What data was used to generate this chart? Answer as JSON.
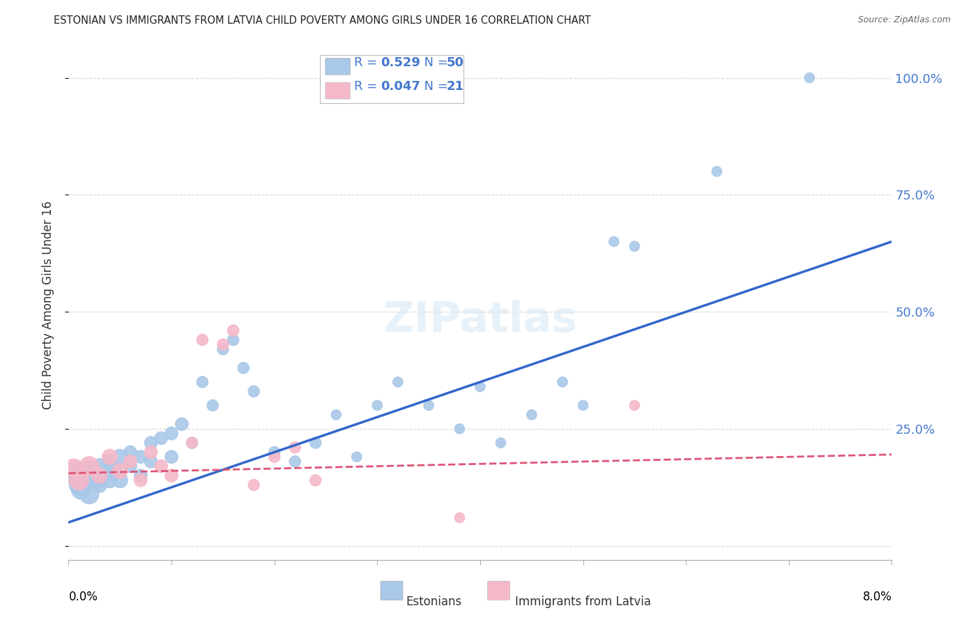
{
  "title": "ESTONIAN VS IMMIGRANTS FROM LATVIA CHILD POVERTY AMONG GIRLS UNDER 16 CORRELATION CHART",
  "source": "Source: ZipAtlas.com",
  "ylabel": "Child Poverty Among Girls Under 16",
  "blue_label": "Estonians",
  "pink_label": "Immigrants from Latvia",
  "blue_R": "0.529",
  "blue_N": "50",
  "pink_R": "0.047",
  "pink_N": "21",
  "watermark": "ZIPatlas",
  "blue_color": "#aac8e8",
  "pink_color": "#f5b8c8",
  "legend_text_color": "#4477cc",
  "background_color": "#ffffff",
  "grid_color": "#cccccc",
  "xlim": [
    0.0,
    0.08
  ],
  "ylim": [
    -0.03,
    1.06
  ],
  "yticks": [
    0.0,
    0.25,
    0.5,
    0.75,
    1.0
  ],
  "ytick_labels": [
    "",
    "25.0%",
    "50.0%",
    "75.0%",
    "100.0%"
  ],
  "blue_scatter_x": [
    0.0005,
    0.001,
    0.0012,
    0.0015,
    0.002,
    0.002,
    0.0025,
    0.003,
    0.003,
    0.0035,
    0.004,
    0.004,
    0.0045,
    0.005,
    0.005,
    0.006,
    0.006,
    0.007,
    0.007,
    0.008,
    0.008,
    0.009,
    0.01,
    0.01,
    0.011,
    0.012,
    0.013,
    0.014,
    0.015,
    0.016,
    0.017,
    0.018,
    0.02,
    0.022,
    0.024,
    0.026,
    0.028,
    0.03,
    0.032,
    0.035,
    0.038,
    0.04,
    0.042,
    0.045,
    0.048,
    0.05,
    0.053,
    0.055,
    0.063,
    0.072
  ],
  "blue_scatter_y": [
    0.155,
    0.13,
    0.12,
    0.14,
    0.16,
    0.11,
    0.14,
    0.13,
    0.17,
    0.15,
    0.14,
    0.18,
    0.16,
    0.14,
    0.19,
    0.17,
    0.2,
    0.19,
    0.15,
    0.22,
    0.18,
    0.23,
    0.24,
    0.19,
    0.26,
    0.22,
    0.35,
    0.3,
    0.42,
    0.44,
    0.38,
    0.33,
    0.2,
    0.18,
    0.22,
    0.28,
    0.19,
    0.3,
    0.35,
    0.3,
    0.25,
    0.34,
    0.22,
    0.28,
    0.35,
    0.3,
    0.65,
    0.64,
    0.8,
    1.0
  ],
  "pink_scatter_x": [
    0.0005,
    0.001,
    0.002,
    0.003,
    0.004,
    0.005,
    0.006,
    0.007,
    0.008,
    0.009,
    0.01,
    0.012,
    0.013,
    0.015,
    0.016,
    0.018,
    0.02,
    0.022,
    0.024,
    0.038,
    0.055
  ],
  "pink_scatter_y": [
    0.165,
    0.14,
    0.17,
    0.15,
    0.19,
    0.16,
    0.18,
    0.14,
    0.2,
    0.17,
    0.15,
    0.22,
    0.44,
    0.43,
    0.46,
    0.13,
    0.19,
    0.21,
    0.14,
    0.06,
    0.3
  ],
  "blue_line_x": [
    0.0,
    0.08
  ],
  "blue_line_y": [
    0.05,
    0.65
  ],
  "blue_line_color": "#3366cc",
  "pink_line_x": [
    0.0,
    0.08
  ],
  "pink_line_y": [
    0.155,
    0.195
  ],
  "pink_line_color": "#dd5577"
}
